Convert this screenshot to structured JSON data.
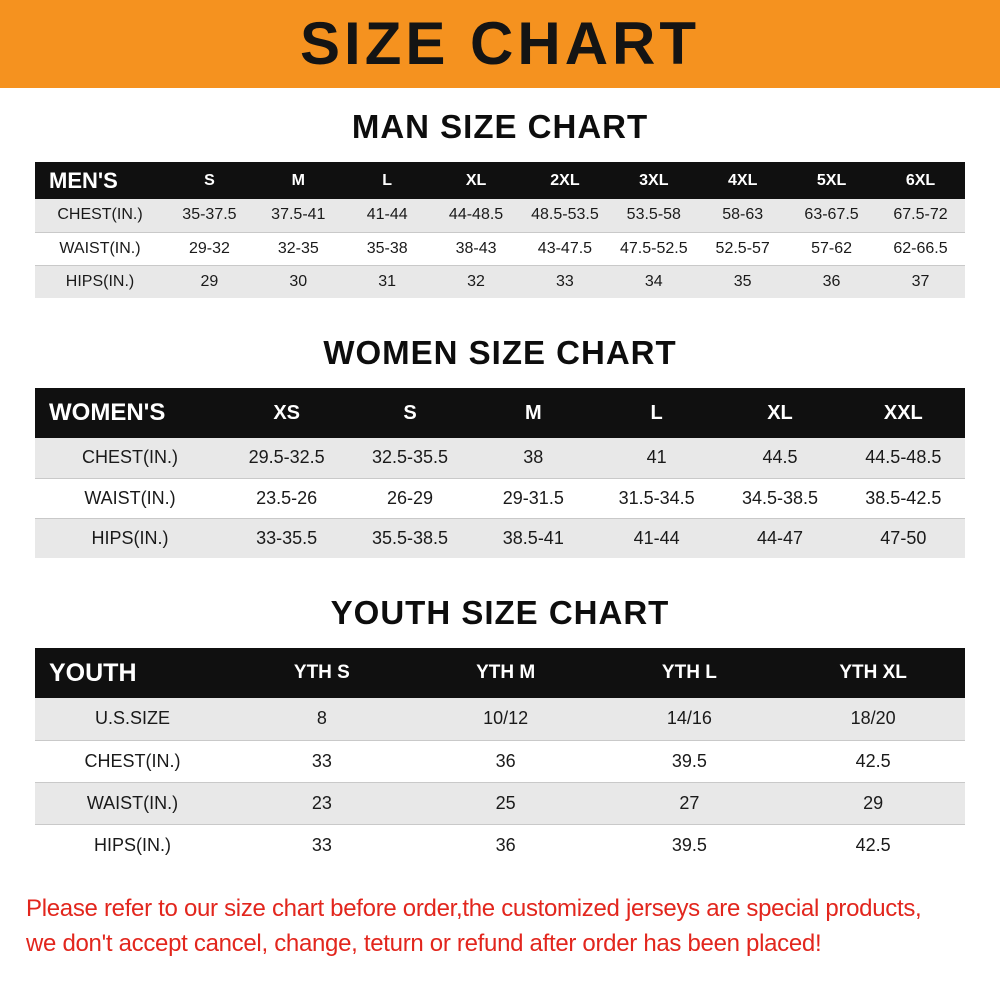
{
  "banner": {
    "title": "SIZE CHART"
  },
  "colors": {
    "banner_bg": "#f5921f",
    "table_header_bg": "#101010",
    "row_alt": "#e8e8e8",
    "notice_red": "#e2261d"
  },
  "sections": [
    {
      "id": "men",
      "title": "MAN SIZE CHART",
      "header_label": "MEN'S",
      "columns": [
        "S",
        "M",
        "L",
        "XL",
        "2XL",
        "3XL",
        "4XL",
        "5XL",
        "6XL"
      ],
      "rows": [
        {
          "label": "CHEST(IN.)",
          "values": [
            "35-37.5",
            "37.5-41",
            "41-44",
            "44-48.5",
            "48.5-53.5",
            "53.5-58",
            "58-63",
            "63-67.5",
            "67.5-72"
          ]
        },
        {
          "label": "WAIST(IN.)",
          "values": [
            "29-32",
            "32-35",
            "35-38",
            "38-43",
            "43-47.5",
            "47.5-52.5",
            "52.5-57",
            "57-62",
            "62-66.5"
          ]
        },
        {
          "label": "HIPS(IN.)",
          "values": [
            "29",
            "30",
            "31",
            "32",
            "33",
            "34",
            "35",
            "36",
            "37"
          ]
        }
      ]
    },
    {
      "id": "women",
      "title": "WOMEN SIZE CHART",
      "header_label": "WOMEN'S",
      "columns": [
        "XS",
        "S",
        "M",
        "L",
        "XL",
        "XXL"
      ],
      "rows": [
        {
          "label": "CHEST(IN.)",
          "values": [
            "29.5-32.5",
            "32.5-35.5",
            "38",
            "41",
            "44.5",
            "44.5-48.5"
          ]
        },
        {
          "label": "WAIST(IN.)",
          "values": [
            "23.5-26",
            "26-29",
            "29-31.5",
            "31.5-34.5",
            "34.5-38.5",
            "38.5-42.5"
          ]
        },
        {
          "label": "HIPS(IN.)",
          "values": [
            "33-35.5",
            "35.5-38.5",
            "38.5-41",
            "41-44",
            "44-47",
            "47-50"
          ]
        }
      ]
    },
    {
      "id": "youth",
      "title": "YOUTH SIZE CHART",
      "header_label": "YOUTH",
      "columns": [
        "YTH S",
        "YTH M",
        "YTH L",
        "YTH XL"
      ],
      "rows": [
        {
          "label": "U.S.SIZE",
          "values": [
            "8",
            "10/12",
            "14/16",
            "18/20"
          ]
        },
        {
          "label": "CHEST(IN.)",
          "values": [
            "33",
            "36",
            "39.5",
            "42.5"
          ]
        },
        {
          "label": "WAIST(IN.)",
          "values": [
            "23",
            "25",
            "27",
            "29"
          ]
        },
        {
          "label": "HIPS(IN.)",
          "values": [
            "33",
            "36",
            "39.5",
            "42.5"
          ]
        }
      ]
    }
  ],
  "footer": {
    "line1": "Please refer to our size chart before order,the customized jerseys are special products,",
    "line2": "we don't accept cancel, change, teturn or refund after order has been placed!"
  }
}
